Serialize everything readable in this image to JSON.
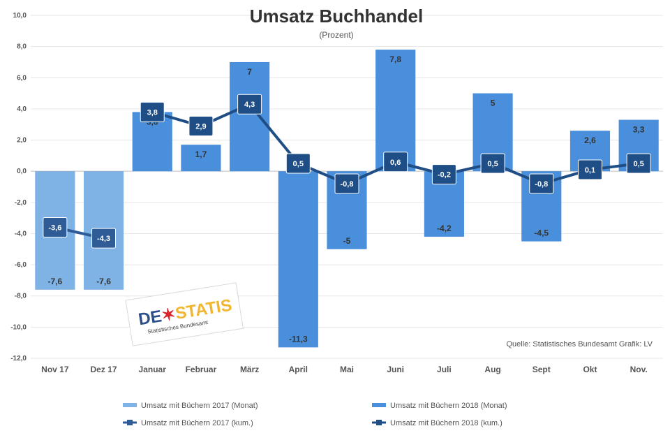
{
  "chart_data": {
    "type": "bar",
    "title": "Umsatz Buchhandel",
    "subtitle": "(Prozent)",
    "categories": [
      "Nov 17",
      "Dez 17",
      "Januar",
      "Februar",
      "März",
      "April",
      "Mai",
      "Juni",
      "Juli",
      "Aug",
      "Sept",
      "Okt",
      "Nov."
    ],
    "y_ticks": [
      "10,0",
      "8,0",
      "6,0",
      "4,0",
      "2,0",
      "0,0",
      "-2,0",
      "-4,0",
      "-6,0",
      "-8,0",
      "-10,0",
      "-12,0"
    ],
    "ylim": [
      -12,
      10
    ],
    "grid": true,
    "legend_position": "bottom",
    "series": [
      {
        "name": "Umsatz mit Büchern 2017 (Monat)",
        "kind": "bar",
        "color": "#7fb2e5",
        "values": [
          -7.6,
          -7.6,
          null,
          null,
          null,
          null,
          null,
          null,
          null,
          null,
          null,
          null,
          null
        ],
        "labels": [
          "-7,6",
          "-7,6",
          "",
          "",
          "",
          "",
          "",
          "",
          "",
          "",
          "",
          "",
          ""
        ]
      },
      {
        "name": "Umsatz mit Büchern 2018 (Monat)",
        "kind": "bar",
        "color": "#4a8fdb",
        "values": [
          null,
          null,
          3.8,
          1.7,
          7,
          -11.3,
          -5,
          7.8,
          -4.2,
          5,
          -4.5,
          2.6,
          3.3
        ],
        "labels": [
          "",
          "",
          "3,8",
          "1,7",
          "7",
          "-11,3",
          "-5",
          "7,8",
          "-4,2",
          "5",
          "-4,5",
          "2,6",
          "3,3"
        ]
      },
      {
        "name": "Umsatz mit Büchern 2017 (kum.)",
        "kind": "line",
        "color": "#2f5c96",
        "values": [
          -3.6,
          -4.3,
          null,
          null,
          null,
          null,
          null,
          null,
          null,
          null,
          null,
          null,
          null
        ],
        "labels": [
          "-3,6",
          "-4,3",
          "",
          "",
          "",
          "",
          "",
          "",
          "",
          "",
          "",
          "",
          ""
        ]
      },
      {
        "name": "Umsatz mit Büchern 2018 (kum.)",
        "kind": "line",
        "color": "#1f4e86",
        "values": [
          null,
          null,
          3.8,
          2.9,
          4.3,
          0.5,
          -0.8,
          0.6,
          -0.2,
          0.5,
          -0.8,
          0.1,
          0.5
        ],
        "labels": [
          "",
          "",
          "3,8",
          "2,9",
          "4,3",
          "0,5",
          "-0,8",
          "0,6",
          "-0,2",
          "0,5",
          "-0,8",
          "0,1",
          "0,5"
        ]
      }
    ],
    "source": "Quelle: Statistisches Bundesamt Grafik: LV"
  },
  "logo": {
    "text_left": "DE",
    "text_right": "STATIS",
    "tagline": "Statistisches Bundesamt"
  },
  "colors": {
    "grid": "#e6e6e6",
    "axis": "#bfbfbf",
    "logo_blue": "#2a4f8a",
    "logo_red": "#d8232a",
    "logo_yellow": "#f2b531"
  }
}
